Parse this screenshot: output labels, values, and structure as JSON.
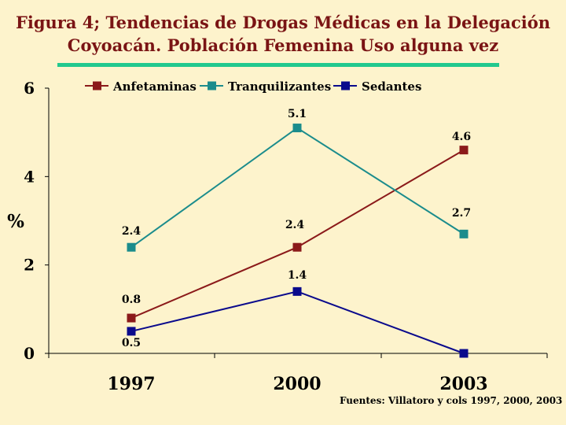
{
  "title_line1": "Figura 4; Tendencias de Drogas Médicas en  la Delegación",
  "title_line2": "Coyoacán. Población Femenina Uso alguna vez",
  "footer": "Fuentes: Villatoro y cols 1997, 2000, 2003",
  "colors": {
    "title": "#7a1414",
    "rule": "#22c98e",
    "background": "#fdf3cc"
  },
  "chart_data": {
    "type": "line",
    "title": "Figura 4; Tendencias de Drogas Médicas en  la Delegación Coyoacán. Población Femenina Uso alguna vez",
    "x": [
      "1997",
      "2000",
      "2003"
    ],
    "ylabel": "%",
    "xlabel": "",
    "ylim": [
      0,
      6
    ],
    "yticks": [
      "0",
      "2",
      "4",
      "6"
    ],
    "grid": false,
    "legend": "top",
    "series": [
      {
        "name": "Anfetaminas",
        "color": "#8b1a1a",
        "marker": "square",
        "values": [
          0.8,
          2.4,
          4.6
        ],
        "labels": [
          "0.8",
          "2.4",
          "4.6"
        ]
      },
      {
        "name": "Tranquilizantes",
        "color": "#1b8c8c",
        "marker": "square",
        "values": [
          2.4,
          5.1,
          2.7
        ],
        "labels": [
          "2.4",
          "5.1",
          "2.7"
        ]
      },
      {
        "name": "Sedantes",
        "color": "#0a0a8c",
        "marker": "square",
        "values": [
          0.5,
          1.4,
          0
        ],
        "labels": [
          "0.5",
          "1.4",
          ""
        ]
      }
    ]
  }
}
